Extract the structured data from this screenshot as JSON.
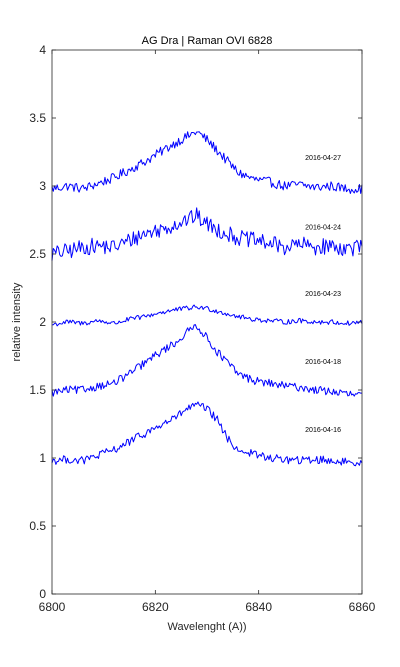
{
  "chart_data": {
    "type": "line",
    "title": "AG Dra | Raman OVI 6828",
    "xlabel": "Wavelenght (A))",
    "ylabel": "relative intensity",
    "xlim": [
      6800,
      6860
    ],
    "ylim": [
      0,
      4
    ],
    "xticks": [
      6800,
      6820,
      6840,
      6860
    ],
    "yticks": [
      0,
      0.5,
      1,
      1.5,
      2,
      2.5,
      3,
      3.5,
      4
    ],
    "grid": false,
    "line_color": "#0000ff",
    "x": [
      6800,
      6803,
      6806,
      6809,
      6812,
      6815,
      6818,
      6821,
      6824,
      6826,
      6828,
      6830,
      6832,
      6834,
      6836,
      6839,
      6842,
      6845,
      6848,
      6851,
      6854,
      6857,
      6860
    ],
    "series": [
      {
        "label": "2016-04-27",
        "values": [
          2.98,
          3.0,
          2.98,
          3.02,
          3.06,
          3.12,
          3.18,
          3.25,
          3.32,
          3.36,
          3.4,
          3.34,
          3.26,
          3.18,
          3.1,
          3.05,
          3.03,
          3.0,
          3.01,
          2.99,
          3.0,
          2.98,
          2.98
        ]
      },
      {
        "label": "2016-04-24",
        "values": [
          2.5,
          2.52,
          2.55,
          2.56,
          2.55,
          2.6,
          2.65,
          2.68,
          2.72,
          2.75,
          2.78,
          2.72,
          2.68,
          2.65,
          2.62,
          2.6,
          2.58,
          2.55,
          2.57,
          2.55,
          2.56,
          2.54,
          2.55
        ]
      },
      {
        "label": "2016-04-23",
        "values": [
          1.98,
          2.0,
          1.99,
          2.01,
          1.99,
          2.02,
          2.04,
          2.07,
          2.09,
          2.1,
          2.11,
          2.1,
          2.08,
          2.06,
          2.04,
          2.02,
          2.01,
          2.0,
          2.01,
          2.0,
          2.0,
          1.99,
          2.0
        ]
      },
      {
        "label": "2016-04-18",
        "values": [
          1.48,
          1.5,
          1.5,
          1.53,
          1.55,
          1.62,
          1.7,
          1.78,
          1.85,
          1.92,
          1.98,
          1.88,
          1.78,
          1.7,
          1.62,
          1.57,
          1.55,
          1.53,
          1.52,
          1.5,
          1.49,
          1.47,
          1.46
        ]
      },
      {
        "label": "2016-04-16",
        "values": [
          0.98,
          0.99,
          0.98,
          1.02,
          1.06,
          1.12,
          1.18,
          1.24,
          1.3,
          1.36,
          1.39,
          1.36,
          1.28,
          1.14,
          1.06,
          1.03,
          1.0,
          0.99,
          0.98,
          0.99,
          0.98,
          0.97,
          0.97
        ]
      }
    ],
    "annotations": [
      {
        "text": "2016-04-27",
        "x": 6849,
        "y": 3.19
      },
      {
        "text": "2016-04-24",
        "x": 6849,
        "y": 2.68
      },
      {
        "text": "2016-04-23",
        "x": 6849,
        "y": 2.19
      },
      {
        "text": "2016-04-18",
        "x": 6849,
        "y": 1.69
      },
      {
        "text": "2016-04-16",
        "x": 6849,
        "y": 1.19
      }
    ]
  }
}
